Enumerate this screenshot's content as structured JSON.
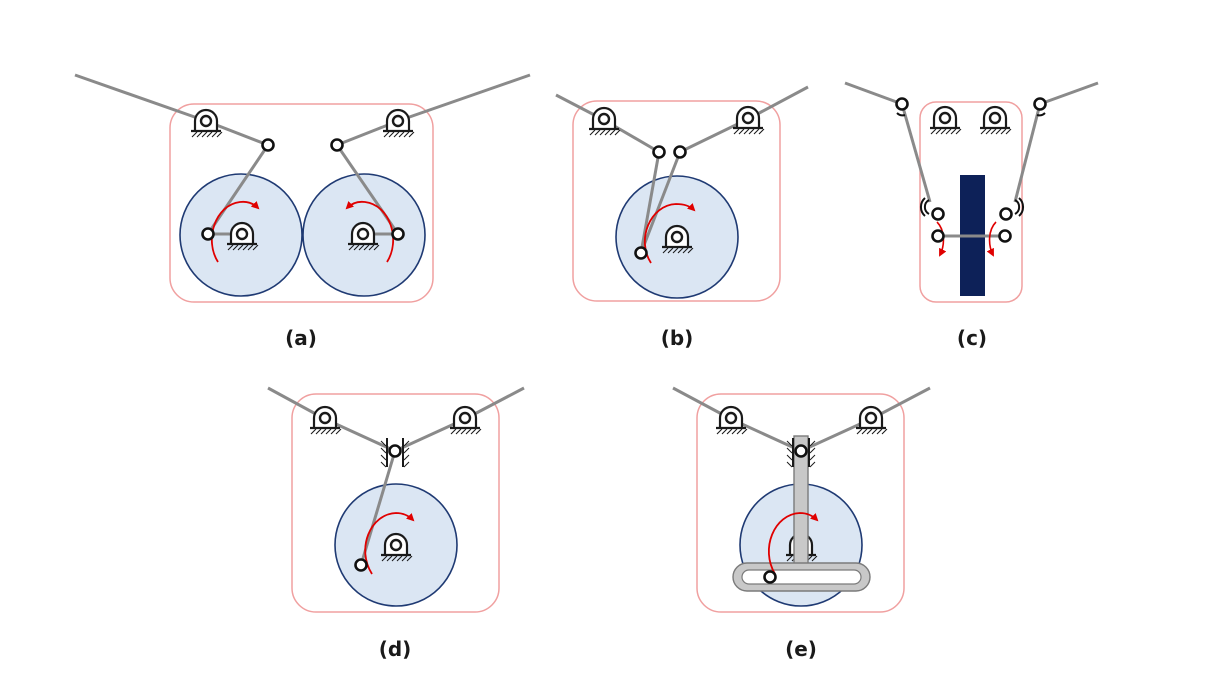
{
  "figure": {
    "captions": {
      "a": "(a)",
      "b": "(b)",
      "c": "(c)",
      "d": "(d)",
      "e": "(e)"
    },
    "colors": {
      "frame": "#f0a0a0",
      "link": "#8a8a8a",
      "wheel_fill": "#dbe6f3",
      "wheel_stroke": "#1f3a73",
      "rotation_arrow": "#e00000",
      "bar_block": "#0d2158",
      "ground": "#1a1a1a",
      "slider_bar": "#c8c8c8"
    },
    "icons": [
      "pivot-support-icon",
      "pin-joint-icon",
      "rotation-arrow-icon",
      "ground-hatch-icon",
      "slider-guide-icon"
    ]
  }
}
